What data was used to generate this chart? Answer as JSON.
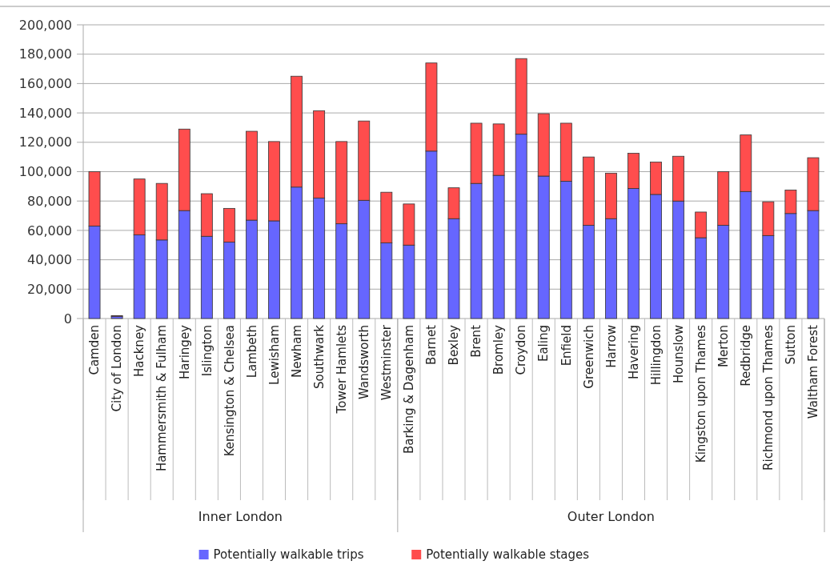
{
  "chart_data": {
    "type": "bar",
    "stacked": true,
    "categories": [
      "Camden",
      "City of London",
      "Hackney",
      "Hammersmith & Fulham",
      "Haringey",
      "Islington",
      "Kensington & Chelsea",
      "Lambeth",
      "Lewisham",
      "Newham",
      "Southwark",
      "Tower Hamlets",
      "Wandsworth",
      "Westminster",
      "Barking & Dagenham",
      "Barnet",
      "Bexley",
      "Brent",
      "Bromley",
      "Croydon",
      "Ealing",
      "Enfield",
      "Greenwich",
      "Harrow",
      "Havering",
      "Hillingdon",
      "Hounslow",
      "Kingston upon Thames",
      "Merton",
      "Redbridge",
      "Richmond upon Thames",
      "Sutton",
      "Waltham Forest"
    ],
    "series": [
      {
        "name": "Potentially walkable trips",
        "color": "#6666ff",
        "values": [
          63000,
          1500,
          57000,
          53500,
          73500,
          56000,
          52000,
          67000,
          66500,
          89500,
          82000,
          64500,
          80500,
          51500,
          50000,
          114000,
          68000,
          92000,
          97500,
          125500,
          97000,
          93500,
          63500,
          68000,
          88500,
          84500,
          80000,
          55000,
          63500,
          86500,
          56500,
          71500,
          73500
        ]
      },
      {
        "name": "Potentially walkable stages",
        "color": "#ff4d4d",
        "values": [
          37000,
          500,
          38000,
          38500,
          55500,
          29000,
          23000,
          60500,
          54000,
          75500,
          59500,
          56000,
          54000,
          34500,
          28000,
          60000,
          21000,
          41000,
          35000,
          51500,
          42500,
          39500,
          46500,
          31000,
          24000,
          22000,
          30500,
          17500,
          36500,
          38500,
          23000,
          16000,
          36000
        ]
      }
    ],
    "ylim": [
      0,
      200000
    ],
    "yticks": [
      {
        "value": 0,
        "label": "0"
      },
      {
        "value": 20000,
        "label": "20,000"
      },
      {
        "value": 40000,
        "label": "40,000"
      },
      {
        "value": 60000,
        "label": "60,000"
      },
      {
        "value": 80000,
        "label": "80,000"
      },
      {
        "value": 100000,
        "label": "100,000"
      },
      {
        "value": 120000,
        "label": "120,000"
      },
      {
        "value": 140000,
        "label": "140,000"
      },
      {
        "value": 160000,
        "label": "160,000"
      },
      {
        "value": 180000,
        "label": "180,000"
      },
      {
        "value": 200000,
        "label": "200,000"
      }
    ],
    "grid": "y",
    "legend": "bottom",
    "annotations": [
      "Inner London",
      "Outer London"
    ]
  }
}
